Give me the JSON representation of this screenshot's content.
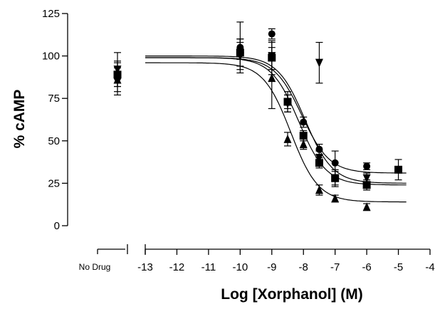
{
  "chart_data": {
    "type": "scatter",
    "title": "",
    "xlabel": "Log [Xorphanol] (M)",
    "ylabel": "% cAMP",
    "xlim": [
      -13,
      -4
    ],
    "ylim": [
      0,
      125
    ],
    "x_ticks": [
      -13,
      -12,
      -11,
      -10,
      -9,
      -8,
      -7,
      -6,
      -5,
      -4
    ],
    "y_ticks": [
      0,
      25,
      50,
      75,
      100,
      125
    ],
    "x_tick_labels": [
      "-13",
      "-12",
      "-11",
      "-10",
      "-9",
      "-8",
      "-7",
      "-6",
      "-5",
      "-4"
    ],
    "y_tick_labels": [
      "0",
      "25",
      "50",
      "75",
      "100",
      "125"
    ],
    "no_drug_label": "No Drug",
    "axis_break": true,
    "grid": false,
    "legend": "none",
    "series": [
      {
        "marker": "circle",
        "no_drug": {
          "y": 87,
          "err": 10
        },
        "points": [
          {
            "x": -10,
            "y": 105,
            "err": 15
          },
          {
            "x": -9,
            "y": 113,
            "err": 3
          },
          {
            "x": -8.5,
            "y": 73,
            "err": 4
          },
          {
            "x": -8,
            "y": 61,
            "err": 3
          },
          {
            "x": -7.5,
            "y": 45,
            "err": 3
          },
          {
            "x": -7,
            "y": 37,
            "err": 7
          },
          {
            "x": -6,
            "y": 35,
            "err": 2
          }
        ],
        "fit": {
          "top": 99,
          "bottom": 31,
          "logEC50": -8.05,
          "hill": 1.0
        }
      },
      {
        "marker": "triangle-down",
        "no_drug": {
          "y": 92,
          "err": 10
        },
        "points": [
          {
            "x": -10,
            "y": 100,
            "err": 8
          },
          {
            "x": -9,
            "y": 100,
            "err": 8
          },
          {
            "x": -8.5,
            "y": 72,
            "err": 5
          },
          {
            "x": -7.5,
            "y": 96,
            "err": 12
          },
          {
            "x": -7.5,
            "y": 40,
            "err": 4
          },
          {
            "x": -7,
            "y": 28,
            "err": 5
          },
          {
            "x": -6,
            "y": 28,
            "err": 3
          }
        ],
        "fit": {
          "top": 100,
          "bottom": 25,
          "logEC50": -7.95,
          "hill": 1.0
        }
      },
      {
        "marker": "square",
        "no_drug": {
          "y": 89,
          "err": 7
        },
        "points": [
          {
            "x": -10,
            "y": 102,
            "err": 8
          },
          {
            "x": -9,
            "y": 99,
            "err": 10
          },
          {
            "x": -8.5,
            "y": 73,
            "err": 6
          },
          {
            "x": -8,
            "y": 53,
            "err": 3
          },
          {
            "x": -7.5,
            "y": 37,
            "err": 3
          },
          {
            "x": -7,
            "y": 28,
            "err": 4
          },
          {
            "x": -6,
            "y": 24,
            "err": 3
          },
          {
            "x": -5,
            "y": 33,
            "err": 6
          }
        ],
        "fit": {
          "top": 99,
          "bottom": 24,
          "logEC50": -8.15,
          "hill": 1.0
        }
      },
      {
        "marker": "triangle-up",
        "no_drug": {
          "y": 86,
          "err": 7
        },
        "points": [
          {
            "x": -10,
            "y": 104,
            "err": 6
          },
          {
            "x": -9,
            "y": 87,
            "err": 18
          },
          {
            "x": -8.5,
            "y": 51,
            "err": 4
          },
          {
            "x": -8,
            "y": 48,
            "err": 3
          },
          {
            "x": -7.5,
            "y": 21,
            "err": 3
          },
          {
            "x": -7,
            "y": 16,
            "err": 2
          },
          {
            "x": -6,
            "y": 11,
            "err": 2
          }
        ],
        "fit": {
          "top": 96,
          "bottom": 14,
          "logEC50": -8.4,
          "hill": 1.0
        }
      }
    ]
  }
}
